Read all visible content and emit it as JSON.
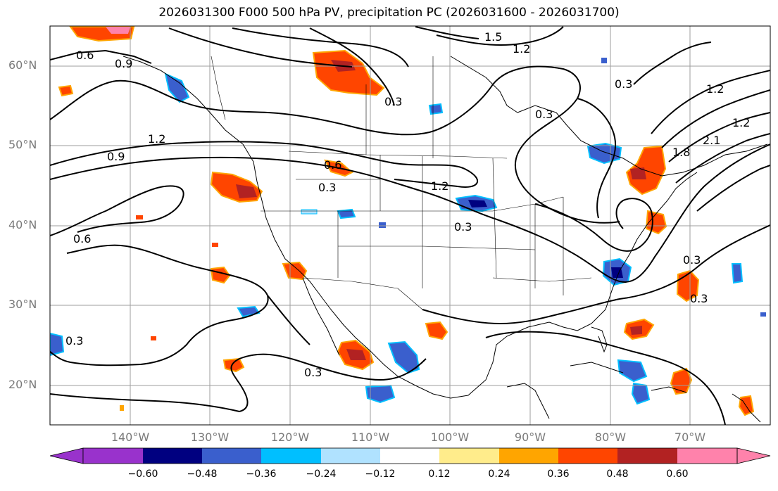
{
  "title": "2026031300 F000 500 hPa PV, precipitation PC (2026031600 - 2026031700)",
  "map": {
    "lon_range": [
      -150,
      -60
    ],
    "lat_range": [
      15,
      65
    ],
    "lat_labels": [
      "60°N",
      "50°N",
      "40°N",
      "30°N",
      "20°N"
    ],
    "lon_labels": [
      "140°W",
      "130°W",
      "120°W",
      "110°W",
      "100°W",
      "90°W",
      "80°W",
      "70°W"
    ],
    "contour_labels": [
      "0.6",
      "0.9",
      "1.2",
      "1.5",
      "1.2",
      "0.3",
      "0.3",
      "0.3",
      "0.6",
      "0.3",
      "1.2",
      "0.3",
      "1.2",
      "0.9",
      "0.6",
      "0.3",
      "0.3",
      "0.3",
      "1.2",
      "1.8",
      "2.1",
      "0.3"
    ],
    "line_color": "#000000",
    "grid_color": "#9e9e9e"
  },
  "colorbar": {
    "ticks": [
      "−0.60",
      "−0.48",
      "−0.36",
      "−0.24",
      "−0.12",
      "0.12",
      "0.24",
      "0.36",
      "0.48",
      "0.60"
    ],
    "colors": [
      "#9932cc",
      "#000080",
      "#3a5fcd",
      "#00bfff",
      "#b0e2ff",
      "#ffffff",
      "#ffec8b",
      "#ffa500",
      "#ff4500",
      "#b22222",
      "#ff82ab"
    ]
  }
}
